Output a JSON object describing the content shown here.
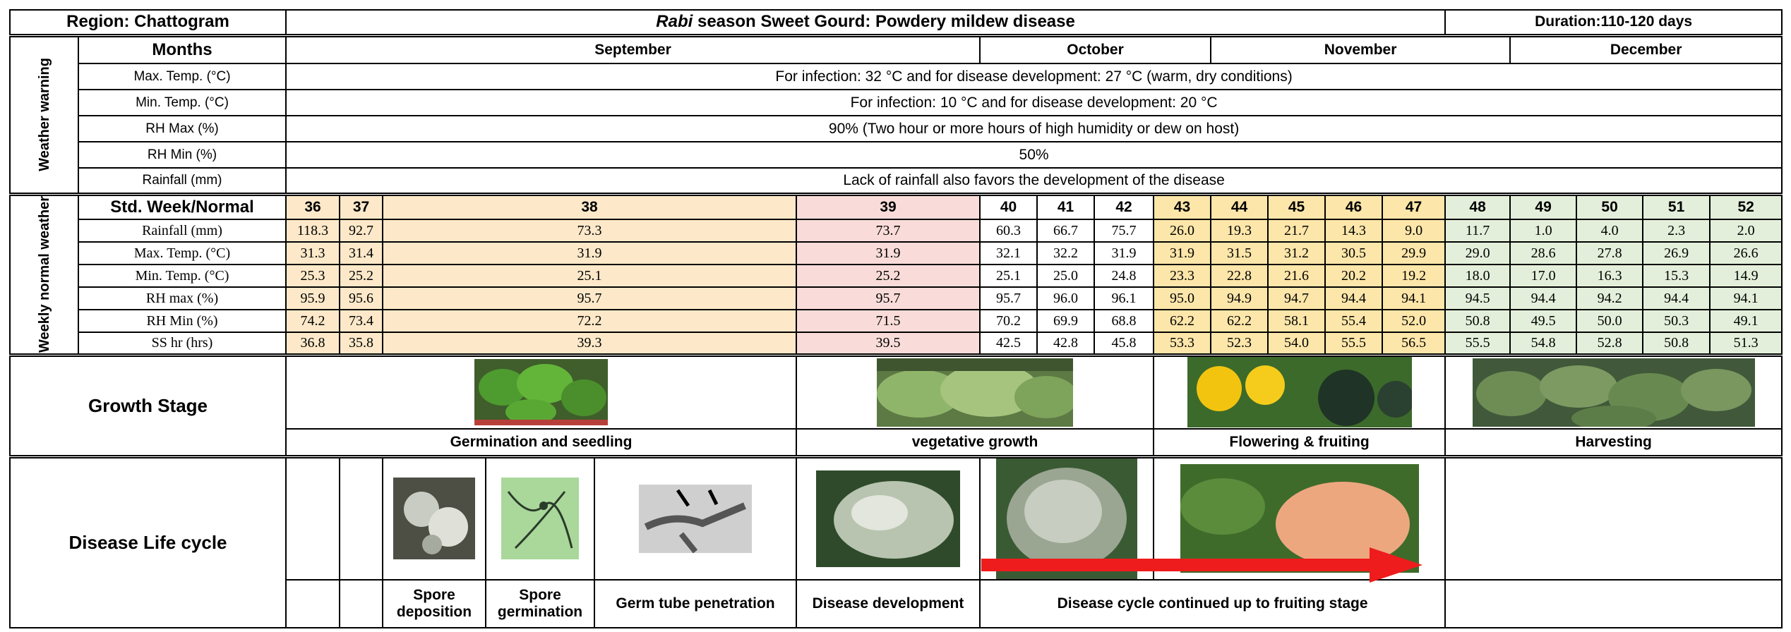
{
  "header": {
    "region": "Region: Chattogram",
    "title_italic": "Rabi",
    "title_rest": "season Sweet Gourd: Powdery mildew disease",
    "duration": "Duration:110-120 days"
  },
  "weather_warning": {
    "label": "Weather warning",
    "months_label": "Months",
    "months": [
      "September",
      "October",
      "November",
      "December"
    ],
    "rows": [
      {
        "label": "Max. Temp. (°C)",
        "text": "For infection: 32 °C and for disease development: 27 °C (warm, dry conditions)"
      },
      {
        "label": "Min. Temp. (°C)",
        "text": "For infection: 10 °C and for disease development: 20 °C"
      },
      {
        "label": "RH Max (%)",
        "text": "90% (Two hour or more hours of high humidity or dew on host)"
      },
      {
        "label": "RH Min (%)",
        "text": "50%"
      },
      {
        "label": "Rainfall (mm)",
        "text": "Lack of rainfall also favors the development of the disease"
      }
    ]
  },
  "weekly": {
    "label": "Weekly normal weather",
    "header": "Std. Week/Normal",
    "weeks": [
      36,
      37,
      38,
      39,
      40,
      41,
      42,
      43,
      44,
      45,
      46,
      47,
      48,
      49,
      50,
      51,
      52
    ],
    "rows": [
      {
        "label": "Rainfall (mm)",
        "values": [
          "118.3",
          "92.7",
          "73.3",
          "73.7",
          "60.3",
          "66.7",
          "75.7",
          "26.0",
          "19.3",
          "21.7",
          "14.3",
          "9.0",
          "11.7",
          "1.0",
          "4.0",
          "2.3",
          "2.0"
        ]
      },
      {
        "label": "Max. Temp. (°C)",
        "values": [
          "31.3",
          "31.4",
          "31.9",
          "31.9",
          "32.1",
          "32.2",
          "31.9",
          "31.9",
          "31.5",
          "31.2",
          "30.5",
          "29.9",
          "29.0",
          "28.6",
          "27.8",
          "26.9",
          "26.6"
        ]
      },
      {
        "label": "Min. Temp. (°C)",
        "values": [
          "25.3",
          "25.2",
          "25.1",
          "25.2",
          "25.1",
          "25.0",
          "24.8",
          "23.3",
          "22.8",
          "21.6",
          "20.2",
          "19.2",
          "18.0",
          "17.0",
          "16.3",
          "15.3",
          "14.9"
        ]
      },
      {
        "label": "RH max (%)",
        "values": [
          "95.9",
          "95.6",
          "95.7",
          "95.7",
          "95.7",
          "96.0",
          "96.1",
          "95.0",
          "94.9",
          "94.7",
          "94.4",
          "94.1",
          "94.5",
          "94.4",
          "94.2",
          "94.4",
          "94.1"
        ]
      },
      {
        "label": "RH Min (%)",
        "values": [
          "74.2",
          "73.4",
          "72.2",
          "71.5",
          "70.2",
          "69.9",
          "68.8",
          "62.2",
          "62.2",
          "58.1",
          "55.4",
          "52.0",
          "50.8",
          "49.5",
          "50.0",
          "50.3",
          "49.1"
        ]
      },
      {
        "label": "SS hr (hrs)",
        "values": [
          "36.8",
          "35.8",
          "39.3",
          "39.5",
          "42.5",
          "42.8",
          "45.8",
          "53.3",
          "52.3",
          "54.0",
          "55.5",
          "56.5",
          "55.5",
          "54.8",
          "52.8",
          "50.8",
          "51.3"
        ]
      }
    ]
  },
  "growth": {
    "label": "Growth Stage",
    "stages": [
      "Germination and seedling",
      "vegetative growth",
      "Flowering & fruiting",
      "Harvesting"
    ]
  },
  "disease": {
    "label": "Disease Life cycle",
    "steps": [
      "Spore deposition",
      "Spore germination",
      "Germ tube penetration",
      "Disease development",
      "Disease cycle continued up to fruiting stage"
    ]
  }
}
